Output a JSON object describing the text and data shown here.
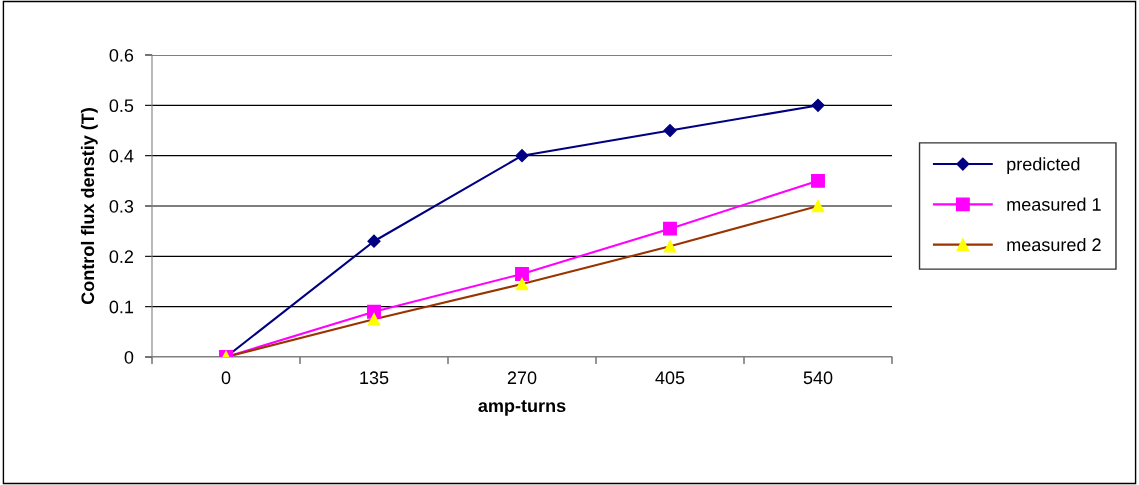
{
  "chart_data": {
    "type": "line",
    "xlabel": "amp-turns",
    "ylabel": "Control flux denstiy (T)",
    "categories": [
      "0",
      "135",
      "270",
      "405",
      "540"
    ],
    "series": [
      {
        "name": "predicted",
        "color": "#000080",
        "marker": "diamond",
        "values": [
          0,
          0.23,
          0.4,
          0.45,
          0.5
        ]
      },
      {
        "name": "measured 1",
        "color": "#ff00ff",
        "marker": "square",
        "values": [
          0,
          0.09,
          0.165,
          0.255,
          0.35
        ]
      },
      {
        "name": "measured 2",
        "color": "#993300",
        "colors": [
          "#ffff00",
          "#ffff00",
          "#ffff00",
          "#ffff00",
          "#ffff00"
        ],
        "marker": "triangle",
        "values": [
          0,
          0.075,
          0.145,
          0.22,
          0.3
        ]
      }
    ],
    "ylim": [
      0,
      0.6
    ],
    "yticks": [
      0,
      0.1,
      0.2,
      0.3,
      0.4,
      0.5,
      0.6
    ],
    "grid": "y",
    "legend": "right"
  }
}
